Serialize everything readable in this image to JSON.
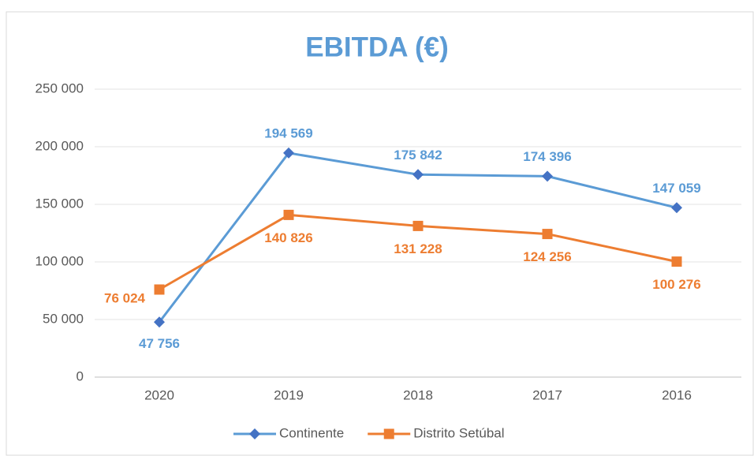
{
  "chart_data": {
    "type": "line",
    "title": "EBITDA (€)",
    "categories": [
      "2020",
      "2019",
      "2018",
      "2017",
      "2016"
    ],
    "series": [
      {
        "name": "Continente",
        "color": "#4472c4",
        "line_color": "#5b9bd5",
        "label_color": "#5b9bd5",
        "marker": "diamond",
        "values": [
          47756,
          194569,
          175842,
          174396,
          147059
        ],
        "value_labels": [
          "47 756",
          "194 569",
          "175 842",
          "174 396",
          "147 059"
        ]
      },
      {
        "name": "Distrito Setúbal",
        "color": "#ed7d31",
        "line_color": "#ed7d31",
        "label_color": "#ed7d31",
        "marker": "square",
        "values": [
          76024,
          140826,
          131228,
          124256,
          100276
        ],
        "value_labels": [
          "76 024",
          "140 826",
          "131 228",
          "124 256",
          "100 276"
        ]
      }
    ],
    "ylim": [
      0,
      250000
    ],
    "yticks": [
      {
        "value": 0,
        "label": "0"
      },
      {
        "value": 50000,
        "label": "50 000"
      },
      {
        "value": 100000,
        "label": "100 000"
      },
      {
        "value": 150000,
        "label": "150 000"
      },
      {
        "value": 200000,
        "label": "200 000"
      },
      {
        "value": 250000,
        "label": "250 000"
      }
    ],
    "grid": true,
    "legend": "bottom"
  }
}
